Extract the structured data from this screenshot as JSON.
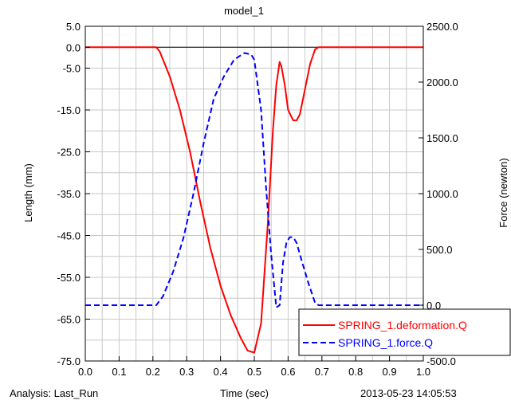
{
  "chart_data": {
    "type": "line",
    "title": "model_1",
    "xlabel": "Time (sec)",
    "ylabel_left": "Length (mm)",
    "ylabel_right": "Force (newton)",
    "xlim": [
      0.0,
      1.0
    ],
    "ylim_left": [
      -75.0,
      5.0
    ],
    "ylim_right": [
      -500.0,
      2500.0
    ],
    "x_ticks": [
      "0.0",
      "0.1",
      "0.2",
      "0.3",
      "0.4",
      "0.5",
      "0.6",
      "0.7",
      "0.8",
      "0.9",
      "1.0"
    ],
    "y_left_ticks": [
      "5.0",
      "0.0",
      "-5.0",
      "-15.0",
      "-25.0",
      "-35.0",
      "-45.0",
      "-55.0",
      "-65.0",
      "-75.0"
    ],
    "y_right_ticks": [
      "2500.0",
      "2000.0",
      "1500.0",
      "1000.0",
      "500.0",
      "0.0",
      "-500.0"
    ],
    "grid": true,
    "legend_position": "bottom-right",
    "series": [
      {
        "name": "SPRING_1.deformation.Q",
        "axis": "left",
        "color": "#ff0000",
        "dash": "solid",
        "x": [
          0.0,
          0.21,
          0.22,
          0.25,
          0.28,
          0.31,
          0.34,
          0.37,
          0.4,
          0.43,
          0.46,
          0.48,
          0.5,
          0.52,
          0.54,
          0.555,
          0.565,
          0.575,
          0.58,
          0.59,
          0.6,
          0.615,
          0.625,
          0.635,
          0.65,
          0.665,
          0.68,
          0.69,
          0.7,
          1.0
        ],
        "values": [
          0.0,
          0.0,
          -1.0,
          -7.0,
          -15.0,
          -25.0,
          -37.0,
          -48.0,
          -57.0,
          -64.0,
          -69.5,
          -72.5,
          -73.0,
          -66.0,
          -42.0,
          -20.0,
          -9.0,
          -3.5,
          -4.5,
          -9.0,
          -15.0,
          -17.5,
          -17.5,
          -16.0,
          -10.0,
          -4.0,
          -0.5,
          0.0,
          0.0,
          0.0
        ]
      },
      {
        "name": "SPRING_1.force.Q",
        "axis": "right",
        "color": "#0000ff",
        "dash": "dashed",
        "x": [
          0.0,
          0.21,
          0.23,
          0.26,
          0.29,
          0.32,
          0.35,
          0.38,
          0.41,
          0.44,
          0.47,
          0.49,
          0.5,
          0.52,
          0.535,
          0.55,
          0.565,
          0.575,
          0.585,
          0.595,
          0.605,
          0.615,
          0.625,
          0.64,
          0.66,
          0.68,
          0.69,
          1.0
        ],
        "values": [
          0.0,
          0.0,
          80.0,
          300.0,
          600.0,
          1000.0,
          1450.0,
          1850.0,
          2050.0,
          2200.0,
          2260.0,
          2250.0,
          2200.0,
          1750.0,
          1050.0,
          450.0,
          -20.0,
          0.0,
          380.0,
          560.0,
          610.0,
          610.0,
          560.0,
          400.0,
          200.0,
          20.0,
          0.0,
          0.0
        ]
      }
    ]
  },
  "footer": {
    "analysis": "Analysis:  Last_Run",
    "xlabel_repeat": "Time (sec)",
    "timestamp": "2013-05-23 14:05:53"
  }
}
